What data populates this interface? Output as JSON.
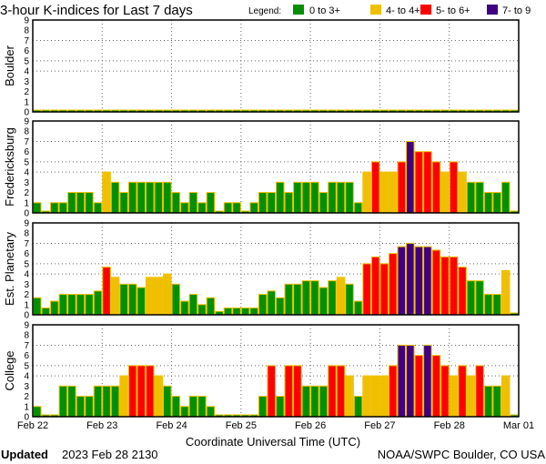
{
  "title": "3-hour K-indices for Last 7 days",
  "legend": {
    "label": "Legend:",
    "items": [
      {
        "label": "0 to 3+",
        "color": "#009000"
      },
      {
        "label": "4- to 4+",
        "color": "#f0c000"
      },
      {
        "label": "5- to 6+",
        "color": "#ff0000"
      },
      {
        "label": "7- to 9",
        "color": "#400080"
      }
    ]
  },
  "footer": {
    "updated_label": "Updated",
    "updated_value": "2023 Feb 28 2130",
    "source": "NOAA/SWPC Boulder, CO USA"
  },
  "chart_data": {
    "type": "bar",
    "title": "3-hour K-indices for Last 7 days",
    "xlabel": "Coordinate Universal Time (UTC)",
    "x_ticks": [
      "Feb 22",
      "Feb 23",
      "Feb 24",
      "Feb 25",
      "Feb 26",
      "Feb 27",
      "Feb 28",
      "Mar 01"
    ],
    "y_ticks": [
      "0",
      "1",
      "2",
      "3",
      "4",
      "5",
      "6",
      "7",
      "8",
      "9"
    ],
    "ylim": [
      0,
      9
    ],
    "gridlines_y": [
      4,
      5,
      7
    ],
    "bars_per_day": 8,
    "outline_color": "#f0c000",
    "panels": [
      {
        "name": "Boulder",
        "values": [
          0,
          0,
          0,
          0,
          0,
          0,
          0,
          0,
          0,
          0,
          0,
          0,
          0,
          0,
          0,
          0,
          0,
          0,
          0,
          0,
          0,
          0,
          0,
          0,
          0,
          0,
          0,
          0,
          0,
          0,
          0,
          0,
          0,
          0,
          0,
          0,
          0,
          0,
          0,
          0,
          0,
          0,
          0,
          0,
          0,
          0,
          0,
          0,
          0,
          0,
          0,
          0,
          0,
          0,
          0,
          0
        ]
      },
      {
        "name": "Fredericksburg",
        "values": [
          1,
          0,
          1,
          1,
          2,
          2,
          2,
          1,
          4,
          3,
          2,
          3,
          3,
          3,
          3,
          3,
          2,
          1,
          2,
          1,
          2,
          0,
          1,
          1,
          0,
          1,
          2,
          2,
          3,
          2,
          3,
          3,
          3,
          2,
          3,
          3,
          3,
          1,
          4,
          5,
          4,
          4,
          5,
          7,
          6,
          6,
          5,
          4,
          5,
          4,
          3,
          3,
          2,
          2,
          3,
          0
        ]
      },
      {
        "name": "Est. Planetary",
        "values": [
          1.67,
          0.67,
          1.33,
          2,
          2,
          2,
          2,
          2.33,
          4.67,
          3.67,
          3,
          3,
          2.67,
          3.67,
          3.67,
          4,
          3,
          1.33,
          2,
          1,
          1.67,
          0.33,
          0.67,
          0.67,
          0.67,
          0.67,
          2,
          2.33,
          1.67,
          3,
          3,
          3.33,
          3.33,
          2.67,
          3.33,
          3.67,
          3,
          1.33,
          5,
          5.67,
          5,
          6,
          6.67,
          7,
          6.67,
          6.67,
          6.33,
          5.67,
          5.67,
          4.67,
          3.33,
          3.33,
          2,
          2,
          4.33,
          0
        ]
      },
      {
        "name": "College",
        "values": [
          1,
          0,
          0,
          3,
          3,
          2,
          2,
          3,
          3,
          3,
          4,
          5,
          5,
          5,
          4,
          3,
          2,
          1,
          2,
          2,
          1,
          0,
          0,
          0,
          0,
          0,
          2,
          5,
          2,
          5,
          5,
          3,
          3,
          3,
          5,
          5,
          4,
          2,
          4,
          4,
          4,
          5,
          7,
          7,
          6,
          7,
          6,
          5,
          4,
          5,
          4,
          5,
          3,
          3,
          4,
          0
        ]
      }
    ]
  }
}
